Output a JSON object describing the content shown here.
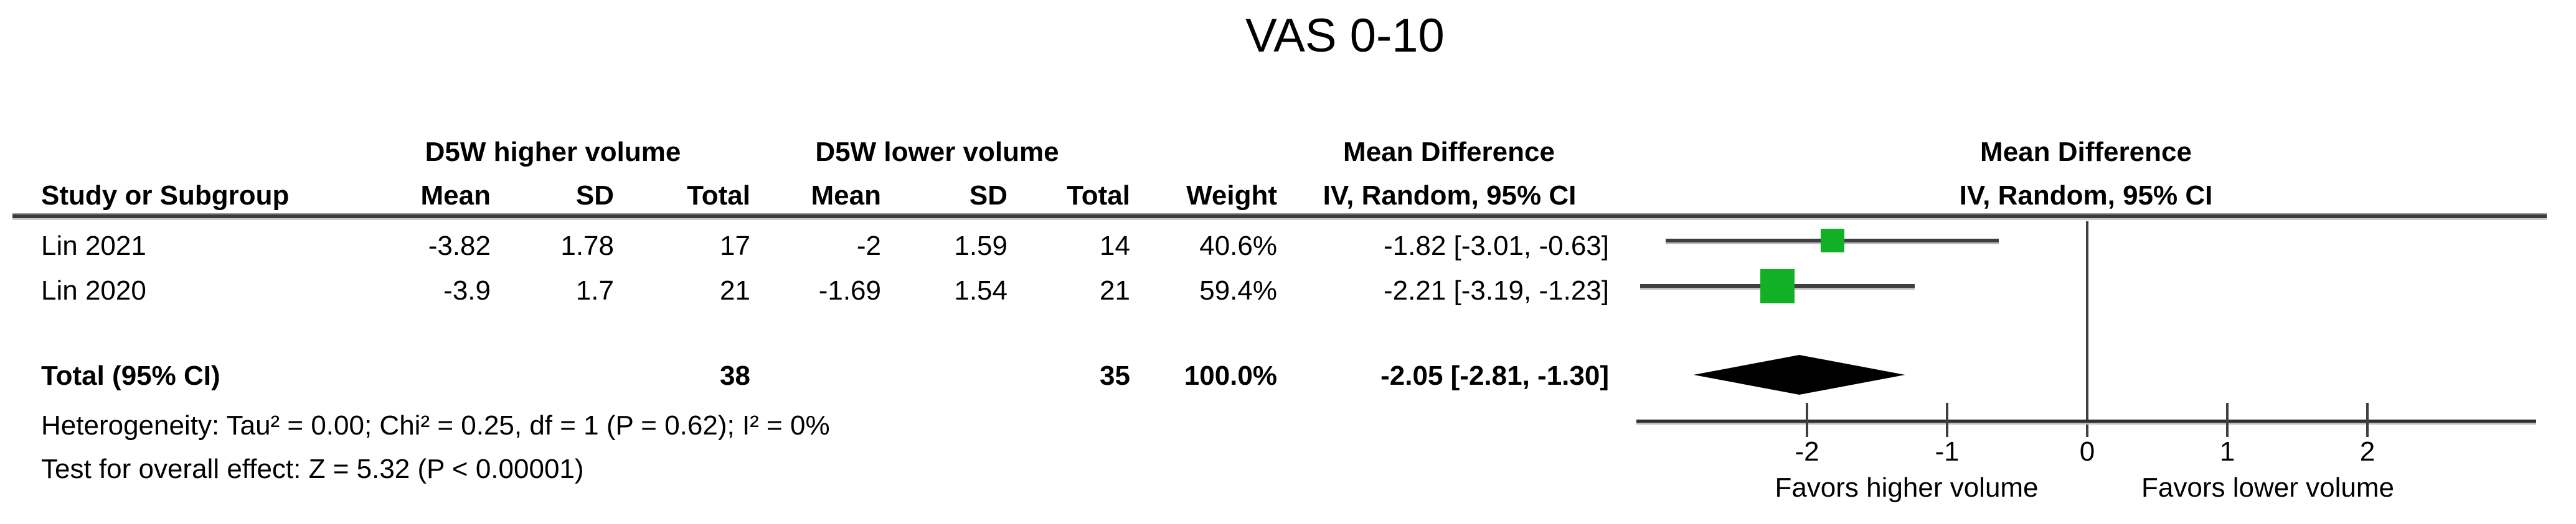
{
  "title": "VAS 0-10",
  "header": {
    "study": "Study or Subgroup",
    "group1": "D5W higher volume",
    "group2": "D5W lower volume",
    "mean1": "Mean",
    "sd1": "SD",
    "total1": "Total",
    "mean2": "Mean",
    "sd2": "SD",
    "total2": "Total",
    "weight": "Weight",
    "md_line1": "Mean Difference",
    "md_line2": "IV, Random, 95% CI",
    "plot_line1": "Mean Difference",
    "plot_line2": "IV, Random, 95% CI"
  },
  "rows": [
    {
      "study": "Lin 2021",
      "mean1": "-3.82",
      "sd1": "1.78",
      "total1": "17",
      "mean2": "-2",
      "sd2": "1.59",
      "total2": "14",
      "weight": "40.6%",
      "md_ci": "-1.82 [-3.01, -0.63]"
    },
    {
      "study": "Lin 2020",
      "mean1": "-3.9",
      "sd1": "1.7",
      "total1": "21",
      "mean2": "-1.69",
      "sd2": "1.54",
      "total2": "21",
      "weight": "59.4%",
      "md_ci": "-2.21 [-3.19, -1.23]"
    }
  ],
  "total_row": {
    "label": "Total (95% CI)",
    "total1": "38",
    "total2": "35",
    "weight": "100.0%",
    "md_ci": "-2.05 [-2.81, -1.30]"
  },
  "footnotes": {
    "heterogeneity": "Heterogeneity: Tau² = 0.00; Chi² = 0.25, df = 1 (P = 0.62); I² = 0%",
    "overall_effect": "Test for overall effect: Z = 5.32 (P < 0.00001)"
  },
  "chart_data": {
    "type": "forest",
    "title": "VAS 0-10",
    "effect_measure": "Mean Difference, IV, Random, 95% CI",
    "x_axis": {
      "tick_values": [
        -2,
        -1,
        0,
        1,
        2
      ],
      "tick_labels": [
        "-2",
        "-1",
        "0",
        "1",
        "2"
      ],
      "range": [
        -3.22,
        3.2
      ],
      "zero_line": 0
    },
    "studies": [
      {
        "name": "Lin 2021",
        "md": -1.82,
        "ci_low": -3.01,
        "ci_high": -0.63,
        "weight_pct": 40.6
      },
      {
        "name": "Lin 2020",
        "md": -2.21,
        "ci_low": -3.19,
        "ci_high": -1.23,
        "weight_pct": 59.4
      }
    ],
    "total": {
      "name": "Total (95% CI)",
      "md": -2.05,
      "ci_low": -2.81,
      "ci_high": -1.3
    },
    "favors_left": "Favors higher volume",
    "favors_right": "Favors lower volume",
    "marker_color": "#12B025",
    "line_color": "#3F3F3F",
    "diamond_color": "#000000"
  }
}
